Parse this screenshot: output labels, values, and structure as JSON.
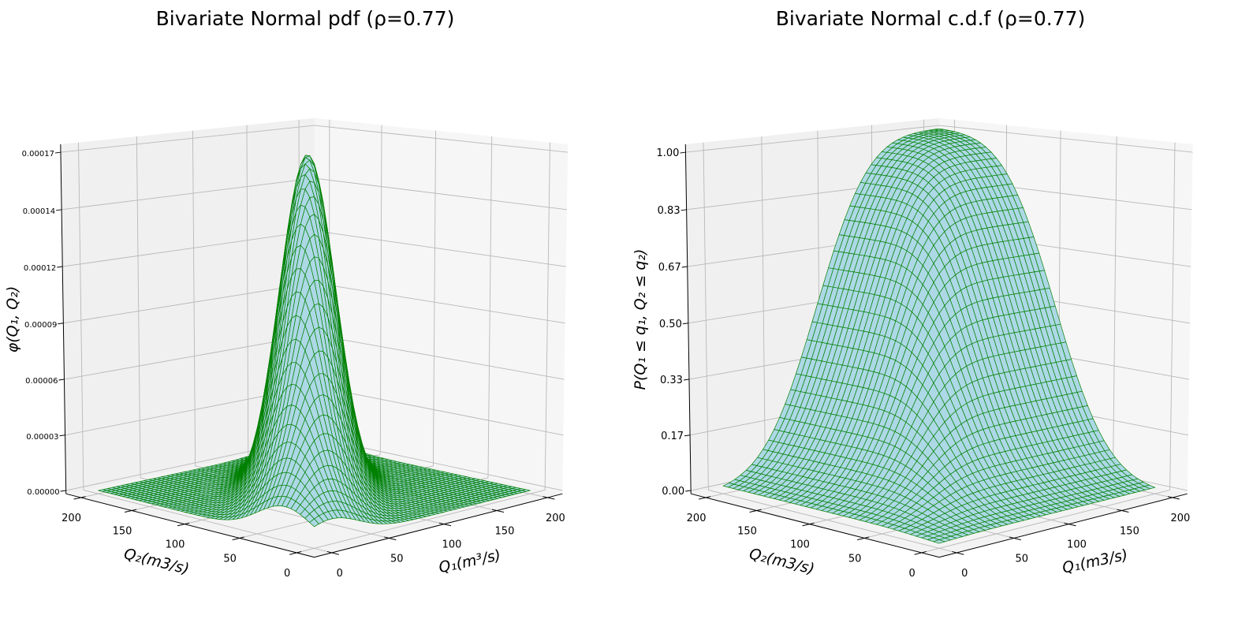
{
  "chart_data": [
    {
      "type": "surface",
      "title": "Bivariate Normal pdf (ρ=0.77)",
      "function": "pdf",
      "xlabel": "Q₁(m³/s)",
      "ylabel": "Q₂(m3/s)",
      "zlabel": "φ(Q₁, Q₂)",
      "xticks": [
        "0",
        "50",
        "100",
        "150",
        "200"
      ],
      "yticks": [
        "0",
        "50",
        "100",
        "150",
        "200"
      ],
      "zticks": [
        "0.00000",
        "0.00003",
        "0.00006",
        "0.00009",
        "0.00012",
        "0.00014",
        "0.00017"
      ],
      "x_range": [
        0,
        200
      ],
      "y_range": [
        0,
        200
      ],
      "distribution": {
        "mean": [
          84,
          90
        ],
        "std": [
          38,
          38
        ],
        "rho": 0.77
      },
      "mesh_cells": 50,
      "face_color": "#add8e6",
      "edge_color": "#008000",
      "grid": true
    },
    {
      "type": "surface",
      "title": "Bivariate Normal c.d.f (ρ=0.77)",
      "function": "cdf",
      "xlabel": "Q₁(m3/s)",
      "ylabel": "Q₂(m3/s)",
      "zlabel": "P(Q₁ ≤ q₁, Q₂ ≤ q₂)",
      "xticks": [
        "0",
        "50",
        "100",
        "150",
        "200"
      ],
      "yticks": [
        "0",
        "50",
        "100",
        "150",
        "200"
      ],
      "zticks": [
        "0.00",
        "0.17",
        "0.33",
        "0.50",
        "0.67",
        "0.83",
        "1.00"
      ],
      "x_range": [
        0,
        200
      ],
      "y_range": [
        0,
        200
      ],
      "distribution": {
        "mean": [
          84,
          90
        ],
        "std": [
          38,
          38
        ],
        "rho": 0.77
      },
      "mesh_cells": 40,
      "face_color": "#add8e6",
      "edge_color": "#008000",
      "grid": true
    }
  ]
}
